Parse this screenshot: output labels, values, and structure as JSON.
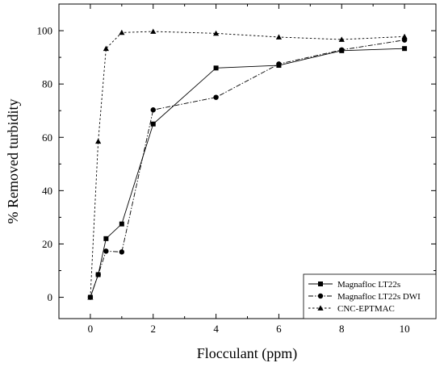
{
  "chart_data": {
    "type": "line",
    "title": "",
    "xlabel": "Flocculant (ppm)",
    "ylabel": "% Removed turbidity",
    "xlim": [
      -1,
      11
    ],
    "ylim": [
      -8,
      110
    ],
    "xticks": [
      0,
      2,
      4,
      6,
      8,
      10
    ],
    "yticks": [
      0,
      20,
      40,
      60,
      80,
      100
    ],
    "legend_position": "bottom-right",
    "grid": false,
    "series": [
      {
        "name": "Magnafloc LT22s",
        "marker": "square",
        "line_style": "solid",
        "color": "#000000",
        "x": [
          0,
          0.25,
          0.5,
          1,
          2,
          4,
          6,
          8,
          10
        ],
        "y": [
          0,
          8.5,
          22,
          27.5,
          65,
          86,
          87,
          92.5,
          93.3
        ]
      },
      {
        "name": "Magnafloc LT22s DWI",
        "marker": "circle",
        "line_style": "dashdot",
        "color": "#000000",
        "x": [
          0,
          0.25,
          0.5,
          1,
          2,
          4,
          6,
          8,
          10
        ],
        "y": [
          0,
          8.5,
          17.3,
          17,
          70.3,
          75,
          87.5,
          92.8,
          96.5
        ]
      },
      {
        "name": "CNC-EPTMAC",
        "marker": "triangle",
        "line_style": "dashed",
        "color": "#000000",
        "x": [
          0,
          0.25,
          0.5,
          1,
          2,
          4,
          6,
          8,
          10
        ],
        "y": [
          0,
          58.5,
          93.3,
          99.3,
          99.7,
          99,
          97.6,
          96.7,
          97.8
        ]
      }
    ]
  }
}
